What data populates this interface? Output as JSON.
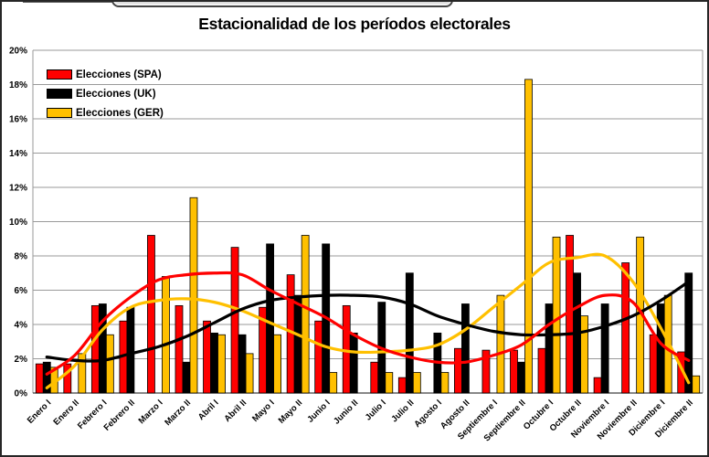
{
  "title": "Estacionalidad de los períodos electorales",
  "legend": [
    {
      "label": "Elecciones (SPA)",
      "color": "#FF0000"
    },
    {
      "label": "Elecciones (UK)",
      "color": "#000000"
    },
    {
      "label": "Elecciones (GER)",
      "color": "#FFC000"
    }
  ],
  "chart_data": {
    "type": "bar",
    "title": "Estacionalidad de los períodos electorales",
    "xlabel": "",
    "ylabel": "",
    "ylim": [
      0,
      20
    ],
    "y_step": 2,
    "y_ticks": [
      "0%",
      "2%",
      "4%",
      "6%",
      "8%",
      "10%",
      "12%",
      "14%",
      "16%",
      "18%",
      "20%"
    ],
    "grid": true,
    "legend_position": "top-left",
    "categories": [
      "Enero I",
      "Enero II",
      "Febrero I",
      "Febrero II",
      "Marzo I",
      "Marzo II",
      "Abril I",
      "Abril II",
      "Mayo I",
      "Mayo II",
      "Junio I",
      "Junio II",
      "Julio I",
      "Julio II",
      "Agosto I",
      "Agosto II",
      "Septiembre I",
      "Septiembre II",
      "Octubre I",
      "Octubre II",
      "Noviembre I",
      "Noviembre II",
      "Diciembre I",
      "Diciembre II"
    ],
    "series": [
      {
        "name": "Elecciones (SPA)",
        "color": "#FF0000",
        "values": [
          1.7,
          1.7,
          5.1,
          4.2,
          9.2,
          5.1,
          4.2,
          8.5,
          5.0,
          6.9,
          4.2,
          5.1,
          1.8,
          0.9,
          0,
          2.6,
          2.5,
          2.5,
          2.6,
          9.2,
          0.9,
          7.6,
          3.4,
          2.4
        ]
      },
      {
        "name": "Elecciones (UK)",
        "color": "#000000",
        "values": [
          1.8,
          0,
          5.2,
          5.0,
          0,
          1.8,
          3.5,
          3.4,
          8.7,
          5.7,
          8.7,
          3.5,
          5.3,
          7.0,
          3.5,
          5.2,
          0,
          1.8,
          5.2,
          7.0,
          5.2,
          0,
          5.2,
          7.0
        ]
      },
      {
        "name": "Elecciones (GER)",
        "color": "#FFC000",
        "values": [
          1.5,
          2.3,
          3.4,
          0,
          6.8,
          11.4,
          3.4,
          2.3,
          3.4,
          9.2,
          1.2,
          0,
          1.2,
          1.2,
          1.2,
          0,
          5.7,
          18.3,
          9.1,
          4.5,
          0,
          9.1,
          5.7,
          1.0
        ]
      }
    ],
    "trend_lines": [
      {
        "name": "Elecciones (GER) suavizado",
        "color": "#FFC000",
        "values": [
          0.3,
          1.6,
          3.7,
          5.0,
          5.4,
          5.5,
          5.3,
          4.8,
          4.1,
          3.4,
          2.7,
          2.4,
          2.4,
          2.5,
          2.8,
          3.7,
          5.0,
          6.3,
          7.6,
          7.9,
          8.0,
          6.5,
          3.8,
          0.6
        ]
      },
      {
        "name": "Elecciones (UK) suavizado",
        "color": "#000000",
        "values": [
          2.1,
          1.9,
          1.9,
          2.3,
          2.7,
          3.3,
          4.1,
          4.9,
          5.4,
          5.6,
          5.7,
          5.7,
          5.6,
          5.2,
          4.5,
          4.0,
          3.6,
          3.4,
          3.4,
          3.5,
          3.9,
          4.5,
          5.4,
          6.5
        ]
      },
      {
        "name": "Elecciones (SPA) suavizado",
        "color": "#FF0000",
        "values": [
          1.1,
          2.2,
          4.2,
          5.6,
          6.6,
          6.9,
          7.0,
          6.9,
          6.0,
          5.2,
          4.4,
          3.4,
          2.6,
          2.1,
          1.8,
          1.8,
          2.2,
          2.8,
          4.0,
          5.0,
          5.7,
          5.3,
          2.9,
          1.9
        ]
      }
    ]
  }
}
